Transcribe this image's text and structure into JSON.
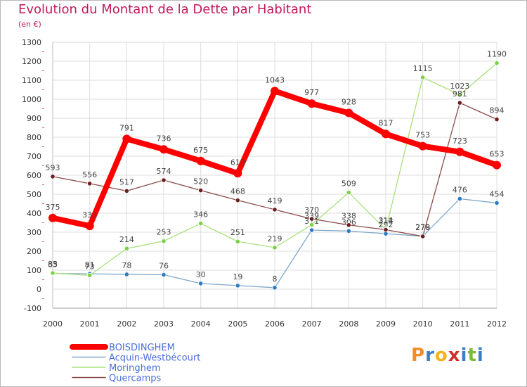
{
  "chart_data": {
    "type": "line",
    "title": "Evolution du Montant de la Dette par Habitant",
    "subtitle": "(en €)",
    "xlabel": "",
    "ylabel": "",
    "ylim": [
      -100,
      1300
    ],
    "yticks": [
      -100,
      0,
      100,
      200,
      300,
      400,
      500,
      600,
      700,
      800,
      900,
      1000,
      1100,
      1200,
      1300
    ],
    "grid": true,
    "legend_position": "bottom-left",
    "x": [
      "2000",
      "2001",
      "2002",
      "2003",
      "2004",
      "2005",
      "2006",
      "2007",
      "2008",
      "2009",
      "2010",
      "2011",
      "2012"
    ],
    "series": [
      {
        "name": "BOISDINGHEM",
        "color": "#ff0000",
        "marker_color": "#ff0000",
        "values": [
          375,
          333,
          791,
          736,
          675,
          610,
          1043,
          977,
          928,
          817,
          753,
          723,
          653
        ]
      },
      {
        "name": "Acquin-Westbécourt",
        "color": "#7fa7c9",
        "marker_color": "#2e7bc4",
        "values": [
          83,
          81,
          78,
          76,
          30,
          19,
          8,
          311,
          306,
          292,
          279,
          476,
          454
        ]
      },
      {
        "name": "Moringhem",
        "color": "#a8e07a",
        "marker_color": "#7bd146",
        "values": [
          85,
          73,
          214,
          253,
          346,
          251,
          219,
          339,
          509,
          314,
          1115,
          1023,
          1190
        ]
      },
      {
        "name": "Quercamps",
        "color": "#8a4a4a",
        "marker_color": "#6b1f1f",
        "values": [
          593,
          556,
          517,
          574,
          520,
          468,
          419,
          370,
          338,
          313,
          278,
          981,
          894
        ]
      }
    ]
  },
  "logo": {
    "text": "Proxiti",
    "letters": [
      {
        "ch": "P",
        "color": "#f28c28"
      },
      {
        "ch": "r",
        "color": "#3a7ec8"
      },
      {
        "ch": "o",
        "color": "#f5b31a"
      },
      {
        "ch": "x",
        "color": "#d0312d"
      },
      {
        "ch": "i",
        "color": "#3a7ec8"
      },
      {
        "ch": "t",
        "color": "#7bb93a"
      },
      {
        "ch": "i",
        "color": "#3a7ec8"
      }
    ]
  }
}
